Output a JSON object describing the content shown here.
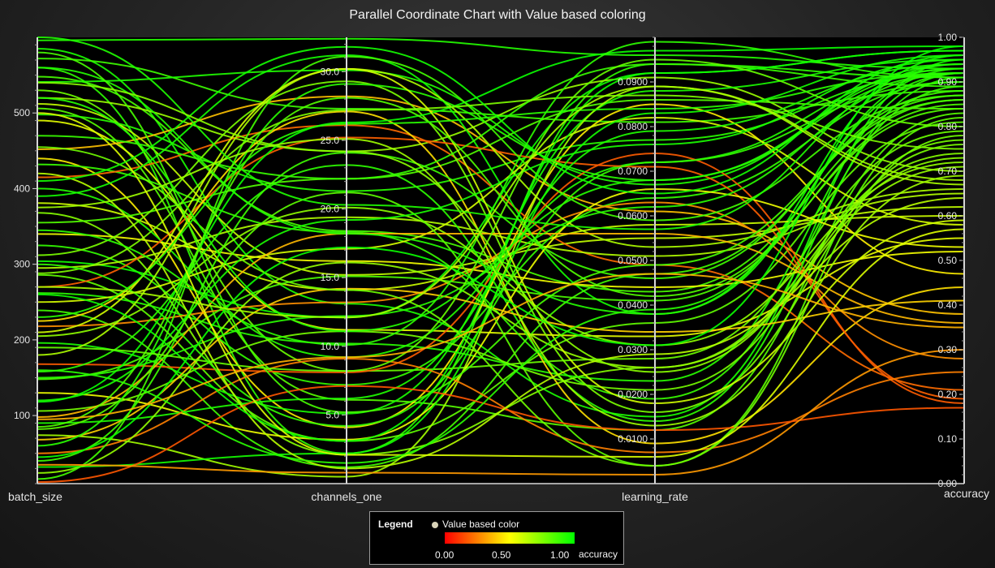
{
  "title": "Parallel Coordinate Chart with Value based coloring",
  "legend": {
    "title": "Legend",
    "series": "Value based color",
    "ticks": [
      "0.00",
      "0.50",
      "1.00"
    ],
    "field": "accuracy",
    "colors": [
      "#ff0000",
      "#ffff00",
      "#00ff00"
    ]
  },
  "chart_data": {
    "type": "parallel-coordinates",
    "title": "Parallel Coordinate Chart with Value based coloring",
    "color_by": "accuracy",
    "color_scale": {
      "min": 0,
      "mid": 0.5,
      "max": 1,
      "colors": [
        "#ff0000",
        "#ffff00",
        "#00ff00"
      ]
    },
    "axes": [
      {
        "name": "batch_size",
        "min": 10,
        "max": 600,
        "tick_labels": [
          "100",
          "200",
          "300",
          "400",
          "500"
        ]
      },
      {
        "name": "channels_one",
        "min": 0,
        "max": 32.5,
        "tick_labels": [
          "5.0",
          "10.0",
          "15.0",
          "20.0",
          "25.0",
          "30.0"
        ]
      },
      {
        "name": "learning_rate",
        "min": 0,
        "max": 0.1,
        "tick_labels": [
          "0.0100",
          "0.0200",
          "0.0300",
          "0.0400",
          "0.0500",
          "0.0600",
          "0.0700",
          "0.0800",
          "0.0900"
        ]
      },
      {
        "name": "accuracy",
        "min": 0,
        "max": 1,
        "tick_labels": [
          "0.00",
          "0.10",
          "0.20",
          "0.30",
          "0.40",
          "0.50",
          "0.60",
          "0.70",
          "0.80",
          "0.90",
          "1.00"
        ]
      }
    ],
    "records": [
      [
        596,
        32.4,
        0.096,
        0.93
      ],
      [
        585,
        13.1,
        0.015,
        0.95
      ],
      [
        572,
        27.3,
        0.081,
        0.88
      ],
      [
        560,
        2.2,
        0.094,
        0.91
      ],
      [
        548,
        18.4,
        0.043,
        0.86
      ],
      [
        541,
        30.1,
        0.067,
        0.94
      ],
      [
        530,
        8.2,
        0.028,
        0.79
      ],
      [
        520,
        24.2,
        0.091,
        0.7
      ],
      [
        512,
        15.2,
        0.055,
        0.62
      ],
      [
        506,
        6.1,
        0.012,
        0.83
      ],
      [
        498,
        21.3,
        0.077,
        0.92
      ],
      [
        490,
        11.2,
        0.033,
        0.55
      ],
      [
        452,
        28.2,
        0.061,
        0.38
      ],
      [
        440,
        4.1,
        0.085,
        0.47
      ],
      [
        432,
        18.3,
        0.019,
        0.89
      ],
      [
        415,
        26.1,
        0.049,
        0.21
      ],
      [
        400,
        9.2,
        0.072,
        0.93
      ],
      [
        390,
        31.2,
        0.038,
        0.96
      ],
      [
        381,
        14.1,
        0.058,
        0.6
      ],
      [
        368,
        2.1,
        0.026,
        0.74
      ],
      [
        355,
        22.2,
        0.086,
        0.84
      ],
      [
        340,
        16.2,
        0.044,
        0.52
      ],
      [
        325,
        7.2,
        0.064,
        0.9
      ],
      [
        312,
        29.3,
        0.016,
        0.76
      ],
      [
        304,
        12.1,
        0.092,
        0.97
      ],
      [
        295,
        19.4,
        0.051,
        0.65
      ],
      [
        286,
        3.1,
        0.036,
        0.81
      ],
      [
        270,
        25.2,
        0.071,
        0.19
      ],
      [
        262,
        10.2,
        0.023,
        0.92
      ],
      [
        250,
        17.1,
        0.082,
        0.58
      ],
      [
        239,
        1.2,
        0.047,
        0.87
      ],
      [
        225,
        27.1,
        0.009,
        0.44
      ],
      [
        218,
        13.2,
        0.063,
        0.28
      ],
      [
        205,
        20.1,
        0.031,
        0.72
      ],
      [
        196,
        5.1,
        0.088,
        0.95
      ],
      [
        180,
        30.2,
        0.053,
        0.66
      ],
      [
        168,
        8.1,
        0.074,
        0.18
      ],
      [
        158,
        23.2,
        0.014,
        0.91
      ],
      [
        148,
        15.1,
        0.041,
        0.85
      ],
      [
        130,
        3.2,
        0.066,
        0.53
      ],
      [
        118,
        26.3,
        0.097,
        0.98
      ],
      [
        106,
        11.1,
        0.021,
        0.77
      ],
      [
        98,
        18.2,
        0.056,
        0.36
      ],
      [
        90,
        6.2,
        0.079,
        0.94
      ],
      [
        82,
        21.2,
        0.004,
        0.82
      ],
      [
        74,
        0.5,
        0.089,
        0.68
      ],
      [
        68,
        14.2,
        0.034,
        0.41
      ],
      [
        60,
        29.1,
        0.068,
        0.92
      ],
      [
        50,
        9.1,
        0.007,
        0.25
      ],
      [
        40,
        24.1,
        0.046,
        0.88
      ],
      [
        32,
        2.2,
        0.083,
        0.96
      ],
      [
        24,
        16.1,
        0.026,
        0.71
      ],
      [
        16,
        31.1,
        0.059,
        0.87
      ],
      [
        12,
        7.1,
        0.012,
        0.17
      ],
      [
        35,
        0.8,
        0.002,
        0.3
      ],
      [
        470,
        22.2,
        0.094,
        0.89
      ],
      [
        560,
        18.2,
        0.038,
        0.93
      ],
      [
        288,
        27.2,
        0.087,
        0.75
      ],
      [
        150,
        12.2,
        0.062,
        0.92
      ],
      [
        420,
        1.1,
        0.029,
        0.64
      ],
      [
        345,
        10.1,
        0.099,
        0.91
      ],
      [
        210,
        30.2,
        0.018,
        0.59
      ],
      [
        580,
        5.2,
        0.049,
        0.86
      ],
      [
        120,
        19.2,
        0.076,
        0.95
      ],
      [
        455,
        14.1,
        0.004,
        0.78
      ],
      [
        260,
        3.1,
        0.092,
        0.97
      ],
      [
        85,
        28.1,
        0.042,
        0.84
      ],
      [
        375,
        25.1,
        0.013,
        0.69
      ],
      [
        520,
        11.1,
        0.068,
        0.93
      ],
      [
        190,
        8.2,
        0.095,
        0.8
      ],
      [
        600,
        20.3,
        0.057,
        0.94
      ],
      [
        300,
        4.2,
        0.072,
        0.9
      ],
      [
        45,
        17.2,
        0.031,
        0.98
      ],
      [
        500,
        2.1,
        0.006,
        0.57
      ],
      [
        230,
        26.2,
        0.084,
        0.92
      ],
      [
        160,
        1.5,
        0.039,
        0.92
      ],
      [
        410,
        31.8,
        0.065,
        0.96
      ],
      [
        95,
        9.2,
        0.047,
        0.35
      ],
      [
        540,
        24.2,
        0.025,
        0.73
      ],
      [
        270,
        12.1,
        0.089,
        0.67
      ]
    ]
  }
}
